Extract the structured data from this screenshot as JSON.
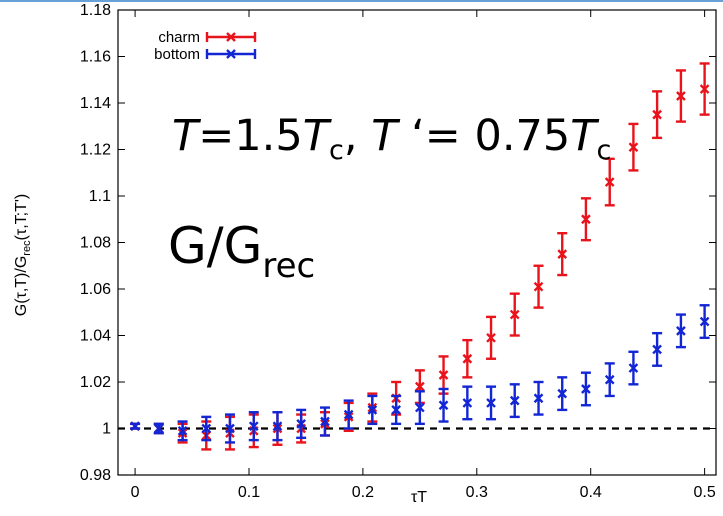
{
  "colors": {
    "charm": "#e8131b",
    "bottom": "#1326d4",
    "frame_top_line": "#6aa0d8",
    "reference_line": "#000000"
  },
  "chart_data": {
    "type": "scatter",
    "title": "",
    "xlabel": "τT",
    "ylabel_parts": {
      "base": "G(τ,T)/G",
      "sub": "rec",
      "tail": "(τ,T;T')"
    },
    "xlim": [
      -0.015,
      0.51
    ],
    "ylim": [
      0.98,
      1.18
    ],
    "xticks": [
      0,
      0.1,
      0.2,
      0.3,
      0.4,
      0.5
    ],
    "xtick_labels": [
      "0",
      "0.1",
      "0.2",
      "0.3",
      "0.4",
      "0.5"
    ],
    "yticks": [
      0.98,
      1.0,
      1.02,
      1.04,
      1.06,
      1.08,
      1.1,
      1.12,
      1.14,
      1.16,
      1.18
    ],
    "ytick_labels": [
      "0.98",
      "1",
      "1.02",
      "1.04",
      "1.06",
      "1.08",
      "1.1",
      "1.12",
      "1.14",
      "1.16",
      "1.18"
    ],
    "grid": false,
    "legend": {
      "placement": "top-left"
    },
    "reference_line": {
      "y": 1.0,
      "style": "dashed"
    },
    "annotations": {
      "temps": {
        "T": "T",
        "eq1": "=1.5",
        "Tc1": "T",
        "c1": "c",
        "sep": ", ",
        "Tp": "T",
        "eq2": " ‘= 0.75",
        "Tc2": "T",
        "c2": "c"
      },
      "ratio": {
        "base": "G/G",
        "sub": "rec"
      }
    },
    "series": [
      {
        "name": "charm",
        "marker": "x",
        "x": [
          0.0,
          0.0208,
          0.0417,
          0.0625,
          0.0833,
          0.1042,
          0.125,
          0.1458,
          0.1667,
          0.1875,
          0.2083,
          0.2292,
          0.25,
          0.2708,
          0.2917,
          0.3125,
          0.3333,
          0.3542,
          0.375,
          0.3958,
          0.4167,
          0.4375,
          0.4583,
          0.4792,
          0.5
        ],
        "y": [
          1.001,
          1.0,
          0.998,
          0.997,
          0.998,
          0.999,
          1.0,
          1.0,
          1.002,
          1.005,
          1.009,
          1.013,
          1.018,
          1.023,
          1.03,
          1.039,
          1.049,
          1.061,
          1.075,
          1.09,
          1.106,
          1.121,
          1.135,
          1.143,
          1.146
        ],
        "err": [
          0.001,
          0.002,
          0.004,
          0.006,
          0.007,
          0.007,
          0.007,
          0.006,
          0.005,
          0.006,
          0.006,
          0.007,
          0.007,
          0.008,
          0.008,
          0.009,
          0.009,
          0.009,
          0.009,
          0.009,
          0.01,
          0.01,
          0.01,
          0.011,
          0.011
        ]
      },
      {
        "name": "bottom",
        "marker": "x",
        "x": [
          0.0,
          0.0208,
          0.0417,
          0.0625,
          0.0833,
          0.1042,
          0.125,
          0.1458,
          0.1667,
          0.1875,
          0.2083,
          0.2292,
          0.25,
          0.2708,
          0.2917,
          0.3125,
          0.3333,
          0.3542,
          0.375,
          0.3958,
          0.4167,
          0.4375,
          0.4583,
          0.4792,
          0.5
        ],
        "y": [
          1.001,
          1.0,
          0.999,
          1.0,
          1.0,
          1.001,
          1.001,
          1.002,
          1.003,
          1.006,
          1.008,
          1.008,
          1.009,
          1.01,
          1.011,
          1.011,
          1.012,
          1.013,
          1.015,
          1.017,
          1.021,
          1.026,
          1.034,
          1.042,
          1.046
        ],
        "err": [
          0.001,
          0.002,
          0.004,
          0.005,
          0.006,
          0.006,
          0.006,
          0.006,
          0.006,
          0.006,
          0.006,
          0.006,
          0.007,
          0.007,
          0.007,
          0.007,
          0.007,
          0.007,
          0.007,
          0.007,
          0.007,
          0.007,
          0.007,
          0.007,
          0.007
        ]
      }
    ]
  }
}
